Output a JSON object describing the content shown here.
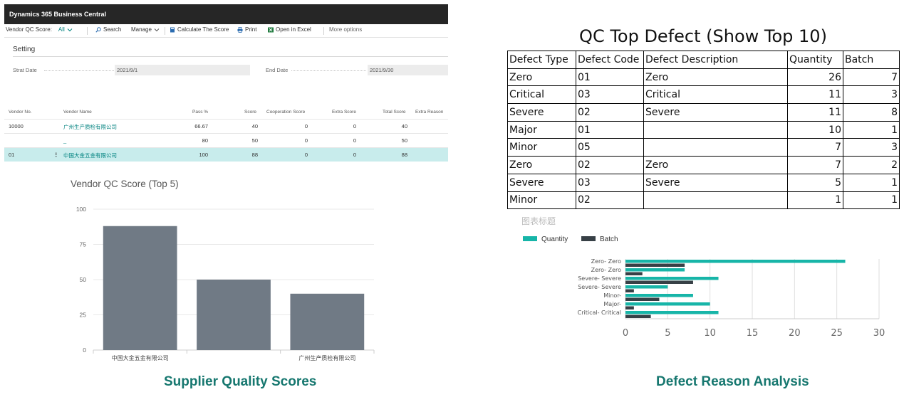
{
  "bc": {
    "app_title": "Dynamics 365 Business Central",
    "actions": {
      "filter_label": "Vendor QC Score:",
      "filter_value": "All",
      "search": "Search",
      "manage": "Manage",
      "calculate": "Calculate The Score",
      "print": "Print",
      "open_excel": "Open in Excel",
      "more": "More options"
    },
    "section_title": "Setting",
    "start_date_label": "Strat Date",
    "start_date_value": "2021/9/1",
    "end_date_label": "End Date",
    "end_date_value": "2021/9/30",
    "columns": [
      "Vendor No.",
      "Vendor Name",
      "Pass %",
      "Score",
      "Cooperation Score",
      "Extra Score",
      "Total Score",
      "Extra Reason"
    ],
    "rows": [
      {
        "vendor_no": "10000",
        "vendor_name": "广州生产质检有限公司",
        "pass": "66.67",
        "score": "40",
        "coop": "0",
        "extra": "0",
        "total": "40",
        "reason": ""
      },
      {
        "vendor_no": "",
        "vendor_name": "_",
        "pass": "80",
        "score": "50",
        "coop": "0",
        "extra": "0",
        "total": "50",
        "reason": ""
      },
      {
        "vendor_no": "01",
        "vendor_name": "中国大金五金有限公司",
        "pass": "100",
        "score": "88",
        "coop": "0",
        "extra": "0",
        "total": "88",
        "reason": "",
        "selected": true
      }
    ]
  },
  "chart_data": [
    {
      "type": "bar",
      "title": "Vendor QC Score (Top 5)",
      "categories": [
        "中国大金五金有限公司",
        "",
        "广州生产质检有限公司"
      ],
      "values": [
        88,
        50,
        40
      ],
      "ylim": [
        0,
        100
      ],
      "yticks": [
        0,
        25,
        50,
        75,
        100
      ],
      "color": "#707a85",
      "grid": true
    },
    {
      "type": "bar",
      "orientation": "horizontal",
      "title": "图表标题",
      "categories": [
        "Zero- Zero",
        "Zero- Zero",
        "Severe- Severe",
        "Severe- Severe",
        "Minor-",
        "Major-",
        "Critical- Critical"
      ],
      "series": [
        {
          "name": "Quantity",
          "color": "#17b5a8",
          "values": [
            26,
            7,
            11,
            5,
            8,
            10,
            11
          ]
        },
        {
          "name": "Batch",
          "color": "#374046",
          "values": [
            7,
            2,
            8,
            1,
            4,
            1,
            3
          ]
        }
      ],
      "xlim": [
        0,
        30
      ],
      "xticks": [
        0,
        5,
        10,
        15,
        20,
        25,
        30
      ],
      "legend": "top-left",
      "grid": true
    }
  ],
  "defect_table": {
    "title": "QC Top Defect (Show Top 10)",
    "headers": [
      "Defect Type",
      "Defect Code",
      "Defect Description",
      "Quantity",
      "Batch"
    ],
    "rows": [
      [
        "Zero",
        "01",
        "Zero",
        "26",
        "7"
      ],
      [
        "Critical",
        "03",
        "Critical",
        "11",
        "3"
      ],
      [
        "Severe",
        "02",
        "Severe",
        "11",
        "8"
      ],
      [
        "Major",
        "01",
        "",
        "10",
        "1"
      ],
      [
        "Minor",
        "05",
        "",
        "7",
        "3"
      ],
      [
        "Zero",
        "02",
        "Zero",
        "7",
        "2"
      ],
      [
        "Severe",
        "03",
        "Severe",
        "5",
        "1"
      ],
      [
        "Minor",
        "02",
        "",
        "1",
        "1"
      ]
    ]
  },
  "captions": {
    "left": "Supplier Quality Scores",
    "right": "Defect Reason Analysis"
  }
}
